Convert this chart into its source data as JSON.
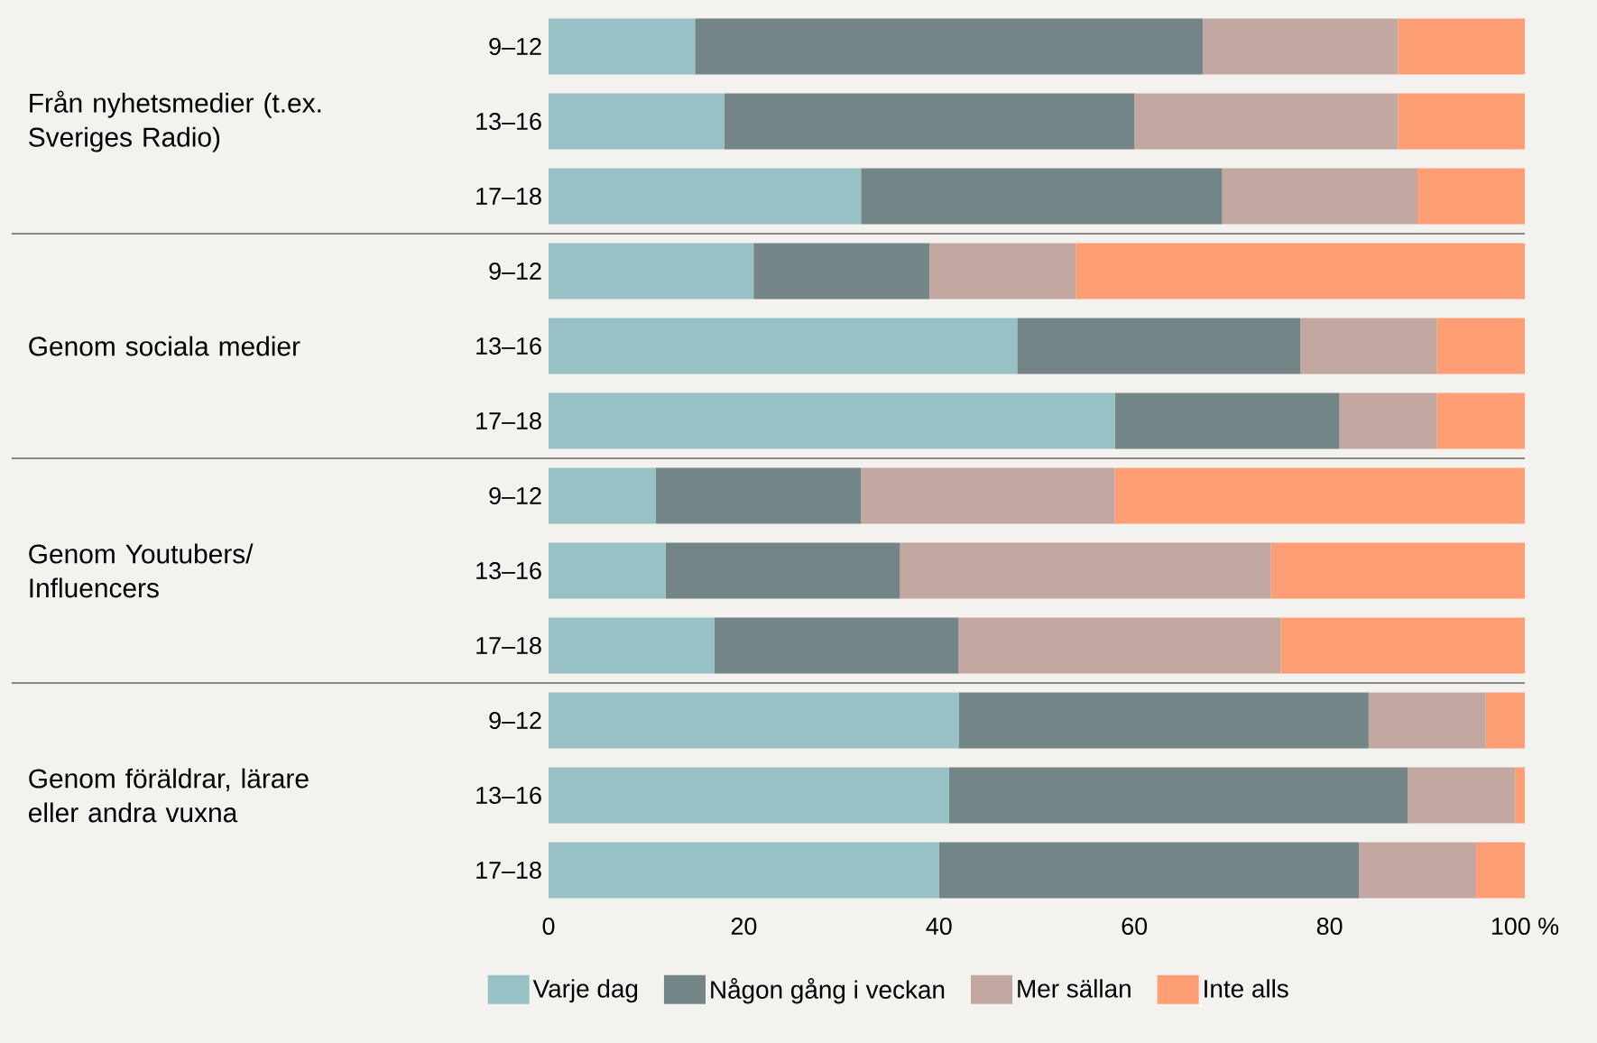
{
  "chart_data": {
    "type": "bar",
    "orientation": "horizontal",
    "stacked": true,
    "categories": [
      "9–12",
      "13–16",
      "17–18",
      "9–12",
      "13–16",
      "17–18",
      "9–12",
      "13–16",
      "17–18",
      "9–12",
      "13–16",
      "17–18"
    ],
    "series": [
      {
        "name": "Varje dag",
        "color": "#98c1c6",
        "values": [
          15,
          18,
          32,
          21,
          48,
          58,
          11,
          12,
          17,
          42,
          41,
          40
        ]
      },
      {
        "name": "Någon gång i veckan",
        "color": "#748587",
        "values": [
          52,
          42,
          37,
          18,
          29,
          23,
          21,
          24,
          25,
          42,
          47,
          43
        ]
      },
      {
        "name": "Mer sällan",
        "color": "#c3a7a1",
        "values": [
          20,
          27,
          20,
          15,
          14,
          10,
          26,
          38,
          33,
          12,
          11,
          12
        ]
      },
      {
        "name": "Inte alls",
        "color": "#fe9e74",
        "values": [
          13,
          13,
          11,
          46,
          9,
          9,
          42,
          26,
          25,
          4,
          1,
          5
        ]
      }
    ],
    "xlim": [
      0,
      100
    ],
    "xticks": [
      0,
      20,
      40,
      60,
      80,
      {
        "value": 100,
        "label": "100 %"
      }
    ],
    "legend": "bottom",
    "annotations": [
      "Från nyhetsmedier (t.ex. Sveriges Radio)",
      "Genom sociala medier",
      "Genom Youtubers/ Influencers",
      "Genom föräldrar, lärare eller andra vuxna"
    ]
  }
}
